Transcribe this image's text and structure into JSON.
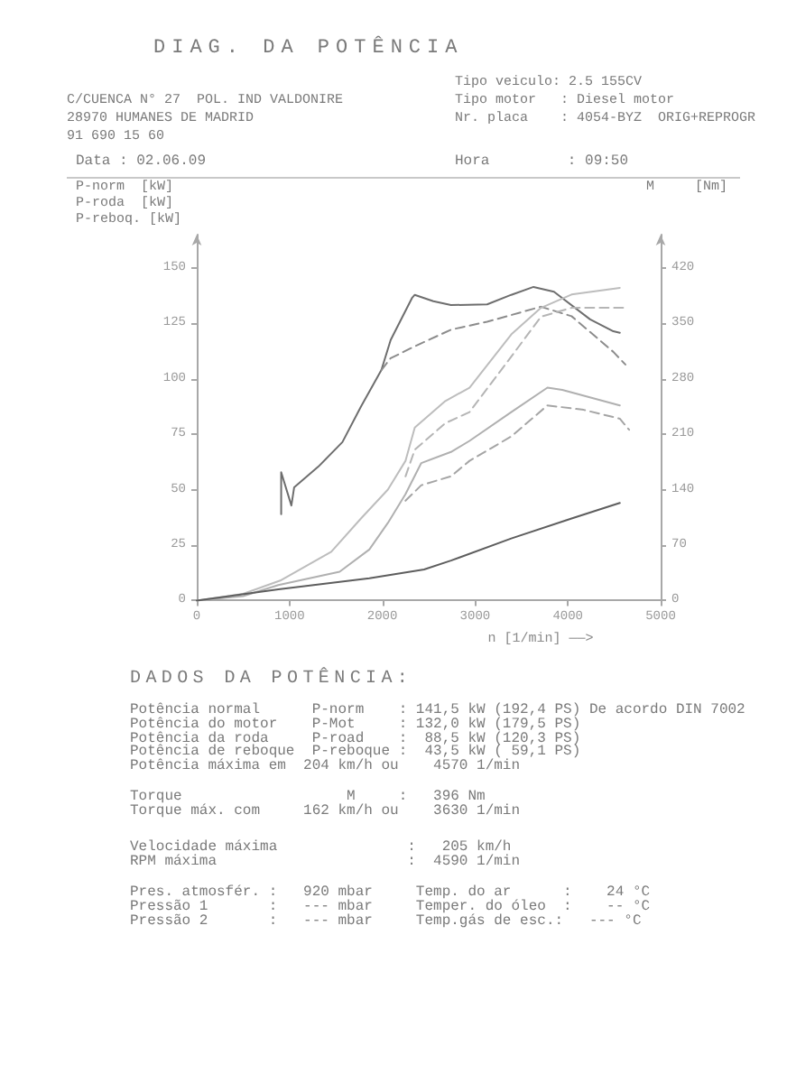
{
  "chart_data": {
    "type": "line",
    "title": "DIAG. DA POTÊNCIA",
    "xlabel": "n [1/min] ——>",
    "ylabel": "P-norm  [kW]\nP-roda  [kW]\nP-reboq. [kW]",
    "y2label": "M     [Nm]",
    "xlim": [
      0,
      5000
    ],
    "xticks": [
      0,
      1000,
      2000,
      3000,
      4000,
      5000
    ],
    "ylim": [
      0,
      165
    ],
    "yticks": [
      0,
      25,
      50,
      75,
      100,
      125,
      150
    ],
    "y2lim": [
      0,
      462
    ],
    "y2ticks": [
      0,
      70,
      140,
      210,
      280,
      350,
      420
    ],
    "marker": "none",
    "series": [
      {
        "color": "#6e6e6e",
        "line_style": "solid",
        "axis": "y2",
        "x": [
          910,
          910,
          1020,
          1050,
          1310,
          1570,
          1770,
          1990,
          2090,
          2190,
          2320,
          2350,
          2550,
          2740,
          3130,
          3390,
          3630,
          3850,
          4240,
          4490,
          4560
        ],
        "values": [
          109,
          162,
          120,
          143,
          169,
          200,
          245,
          291,
          329,
          352,
          382,
          386,
          378,
          373,
          374,
          386,
          396,
          390,
          355,
          340,
          338
        ]
      },
      {
        "color": "#8c8c8c",
        "line_style": "dashed",
        "axis": "y2",
        "x": [
          1990,
          2090,
          2350,
          2740,
          3130,
          3710,
          4040,
          4490,
          4620
        ],
        "values": [
          291,
          306,
          321,
          342,
          352,
          371,
          359,
          314,
          298
        ]
      },
      {
        "color": "#bdbdbd",
        "line_style": "solid",
        "x": [
          0,
          500,
          900,
          1450,
          1770,
          2060,
          2250,
          2350,
          2680,
          2940,
          3390,
          3710,
          4040,
          4560
        ],
        "values": [
          0,
          3,
          9,
          22,
          37,
          50,
          63,
          78,
          90,
          96,
          120,
          132,
          138,
          141
        ]
      },
      {
        "color": "#b5b5b5",
        "line_style": "dashed",
        "x": [
          2250,
          2350,
          2680,
          2940,
          3390,
          3710,
          4040,
          4620
        ],
        "values": [
          56,
          68,
          80,
          85,
          110,
          128,
          132,
          132
        ]
      },
      {
        "color": "#b0b0b0",
        "line_style": "solid",
        "x": [
          0,
          500,
          880,
          1540,
          1860,
          2060,
          2250,
          2420,
          2740,
          2940,
          3390,
          3780,
          3940,
          4560
        ],
        "values": [
          0,
          2,
          7,
          13,
          23,
          35,
          48,
          62,
          67,
          72,
          85,
          96,
          95,
          88
        ]
      },
      {
        "color": "#a5a5a5",
        "line_style": "dashed",
        "x": [
          2250,
          2420,
          2740,
          2940,
          3390,
          3780,
          4170,
          4560,
          4660
        ],
        "values": [
          45,
          52,
          56,
          63,
          74,
          88,
          86,
          82,
          77
        ]
      },
      {
        "color": "#5e5e5e",
        "line_style": "solid",
        "x": [
          0,
          880,
          1860,
          2450,
          2740,
          3390,
          4040,
          4560
        ],
        "values": [
          0,
          5,
          10,
          14,
          18,
          28,
          37,
          44
        ]
      }
    ],
    "annotations": [
      "C/CUENCA N° 27  POL. IND VALDONIRE",
      "28970 HUMANES DE MADRID",
      "91 690 15 60",
      "Tipo veiculo: 2.5 155CV",
      "Tipo motor   : Diesel motor",
      "Nr. placa    : 4054-BYZ  ORIG+REPROGR",
      "Data : 02.06.09",
      "Hora         : 09:50",
      "DADOS DA POTÊNCIA:",
      "Potência normal      P-norm    : 141,5 kW (192,4 PS) De acordo DIN 7002",
      "Potência do motor    P-Mot     : 132,0 kW (179,5 PS)",
      "Potência da roda     P-road    :  88,5 kW (120,3 PS)",
      "Potência de reboque  P-reboque :  43,5 kW ( 59,1 PS)",
      "Potência máxima em  204 km/h ou    4570 1/min",
      "Torque                   M     :   396 Nm",
      "Torque máx. com     162 km/h ou    3630 1/min",
      "Velocidade máxima               :   205 km/h",
      "RPM máxima                      :  4590 1/min",
      "Pres. atmosfér. :   920 mbar     Temp. do ar      :    24 °C",
      "Pressão 1       :   --- mbar     Temper. do óleo  :    -- °C",
      "Pressão 2       :   --- mbar     Temp.gás de esc.:   --- °C"
    ]
  }
}
